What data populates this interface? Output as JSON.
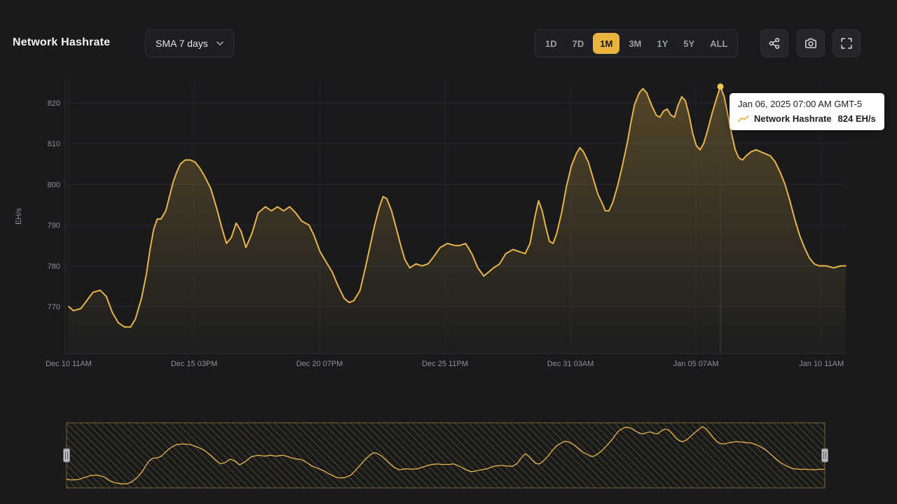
{
  "header": {
    "title": "Network Hashrate",
    "sma_dropdown": {
      "label": "SMA 7 days"
    },
    "ranges": [
      "1D",
      "7D",
      "1M",
      "3M",
      "1Y",
      "5Y",
      "ALL"
    ],
    "active_range": "1M",
    "toolbar": {
      "icons": [
        "share-icon",
        "camera-icon",
        "fullscreen-icon"
      ]
    }
  },
  "tooltip": {
    "datetime": "Jan 06, 2025 07:00 AM GMT-5",
    "series_label": "Network Hashrate",
    "value": "824 EH/s"
  },
  "colors": {
    "background": "#191a1c",
    "accent": "#E9B54A",
    "active_button_bg": "#E8B33E",
    "tooltip_bg": "#ffffff",
    "grid": "#26282c",
    "text_muted": "#8e9094"
  },
  "chart_data": {
    "type": "area",
    "title": "Network Hashrate",
    "ylabel": "EH/s",
    "xlabel": "",
    "ylim": [
      758,
      826
    ],
    "x_unit": "days since Dec 10 11AM",
    "xlim_days": [
      0,
      32
    ],
    "grid": true,
    "legend_position": "none",
    "y_ticks": [
      770,
      780,
      790,
      800,
      810,
      820
    ],
    "x_ticks": [
      {
        "label": "Dec 10 11AM",
        "day": 0
      },
      {
        "label": "Dec 15 03PM",
        "day": 5.167
      },
      {
        "label": "Dec 20 07PM",
        "day": 10.333
      },
      {
        "label": "Dec 25 11PM",
        "day": 15.5
      },
      {
        "label": "Dec 31 03AM",
        "day": 20.667
      },
      {
        "label": "Jan 05 07AM",
        "day": 25.833
      },
      {
        "label": "Jan 10 11AM",
        "day": 31.0
      }
    ],
    "series": [
      {
        "name": "Network Hashrate",
        "unit": "EH/s",
        "color": "#E9B54A",
        "points": [
          [
            0,
            770
          ],
          [
            0.2,
            769
          ],
          [
            0.5,
            769.5
          ],
          [
            0.75,
            771.5
          ],
          [
            1.0,
            773.5
          ],
          [
            1.3,
            774
          ],
          [
            1.55,
            772.5
          ],
          [
            1.8,
            768.5
          ],
          [
            2.05,
            766
          ],
          [
            2.3,
            765
          ],
          [
            2.55,
            765
          ],
          [
            2.75,
            767
          ],
          [
            3.0,
            772
          ],
          [
            3.2,
            778
          ],
          [
            3.35,
            784
          ],
          [
            3.5,
            789
          ],
          [
            3.65,
            791.5
          ],
          [
            3.8,
            791.5
          ],
          [
            4.0,
            793.5
          ],
          [
            4.15,
            797
          ],
          [
            4.3,
            800.5
          ],
          [
            4.45,
            803
          ],
          [
            4.6,
            805
          ],
          [
            4.8,
            806
          ],
          [
            5.0,
            806
          ],
          [
            5.2,
            805.5
          ],
          [
            5.4,
            804
          ],
          [
            5.6,
            802
          ],
          [
            5.85,
            799
          ],
          [
            6.1,
            794
          ],
          [
            6.3,
            789.5
          ],
          [
            6.5,
            785.5
          ],
          [
            6.7,
            787
          ],
          [
            6.9,
            790.5
          ],
          [
            7.1,
            788.5
          ],
          [
            7.3,
            784.5
          ],
          [
            7.55,
            788
          ],
          [
            7.8,
            793
          ],
          [
            8.1,
            794.5
          ],
          [
            8.35,
            793.5
          ],
          [
            8.6,
            794.5
          ],
          [
            8.85,
            793.5
          ],
          [
            9.1,
            794.5
          ],
          [
            9.35,
            793
          ],
          [
            9.6,
            791
          ],
          [
            9.9,
            790
          ],
          [
            10.1,
            787.5
          ],
          [
            10.35,
            783.5
          ],
          [
            10.6,
            781
          ],
          [
            10.85,
            778.5
          ],
          [
            11.1,
            775
          ],
          [
            11.35,
            772
          ],
          [
            11.55,
            771
          ],
          [
            11.75,
            771.5
          ],
          [
            12.0,
            774
          ],
          [
            12.2,
            779
          ],
          [
            12.4,
            784.5
          ],
          [
            12.6,
            790
          ],
          [
            12.8,
            794.5
          ],
          [
            12.95,
            797
          ],
          [
            13.1,
            796.5
          ],
          [
            13.3,
            793.5
          ],
          [
            13.5,
            789
          ],
          [
            13.7,
            784.5
          ],
          [
            13.85,
            781.5
          ],
          [
            14.05,
            779.5
          ],
          [
            14.3,
            780.5
          ],
          [
            14.55,
            780
          ],
          [
            14.8,
            780.5
          ],
          [
            15.0,
            782
          ],
          [
            15.3,
            784.5
          ],
          [
            15.6,
            785.5
          ],
          [
            15.9,
            785
          ],
          [
            16.1,
            785
          ],
          [
            16.35,
            785.5
          ],
          [
            16.6,
            783
          ],
          [
            16.85,
            779.5
          ],
          [
            17.1,
            777.5
          ],
          [
            17.3,
            778.5
          ],
          [
            17.5,
            779.5
          ],
          [
            17.75,
            780.5
          ],
          [
            18.0,
            783
          ],
          [
            18.3,
            784
          ],
          [
            18.55,
            783.5
          ],
          [
            18.8,
            783
          ],
          [
            19.0,
            785.5
          ],
          [
            19.2,
            792
          ],
          [
            19.35,
            796
          ],
          [
            19.5,
            793.5
          ],
          [
            19.65,
            789.5
          ],
          [
            19.8,
            786
          ],
          [
            19.95,
            785.5
          ],
          [
            20.1,
            788
          ],
          [
            20.3,
            793
          ],
          [
            20.5,
            799.5
          ],
          [
            20.7,
            804.5
          ],
          [
            20.9,
            807.5
          ],
          [
            21.05,
            809
          ],
          [
            21.2,
            808
          ],
          [
            21.4,
            805.5
          ],
          [
            21.6,
            801.5
          ],
          [
            21.8,
            797.5
          ],
          [
            22.0,
            795
          ],
          [
            22.1,
            793.5
          ],
          [
            22.25,
            793.5
          ],
          [
            22.4,
            795.5
          ],
          [
            22.6,
            799.5
          ],
          [
            22.8,
            804.5
          ],
          [
            23.0,
            810
          ],
          [
            23.15,
            815
          ],
          [
            23.3,
            819.5
          ],
          [
            23.5,
            822.5
          ],
          [
            23.65,
            823.5
          ],
          [
            23.8,
            822.5
          ],
          [
            24.0,
            819.5
          ],
          [
            24.2,
            817
          ],
          [
            24.35,
            816.5
          ],
          [
            24.5,
            818
          ],
          [
            24.65,
            818.5
          ],
          [
            24.8,
            817
          ],
          [
            24.95,
            816.5
          ],
          [
            25.1,
            819.5
          ],
          [
            25.25,
            821.5
          ],
          [
            25.4,
            820.5
          ],
          [
            25.55,
            817
          ],
          [
            25.7,
            812.5
          ],
          [
            25.85,
            809.5
          ],
          [
            26.0,
            808.5
          ],
          [
            26.15,
            810
          ],
          [
            26.3,
            813
          ],
          [
            26.5,
            817.5
          ],
          [
            26.7,
            821.5
          ],
          [
            26.84,
            824
          ],
          [
            27.0,
            821.5
          ],
          [
            27.15,
            817
          ],
          [
            27.3,
            812.5
          ],
          [
            27.45,
            808.5
          ],
          [
            27.6,
            806.5
          ],
          [
            27.75,
            806
          ],
          [
            27.9,
            807
          ],
          [
            28.1,
            808
          ],
          [
            28.3,
            808.5
          ],
          [
            28.5,
            808
          ],
          [
            28.7,
            807.5
          ],
          [
            28.9,
            807
          ],
          [
            29.1,
            805.5
          ],
          [
            29.3,
            803
          ],
          [
            29.5,
            800
          ],
          [
            29.7,
            796
          ],
          [
            29.9,
            791.5
          ],
          [
            30.1,
            787.5
          ],
          [
            30.3,
            784.5
          ],
          [
            30.5,
            782
          ],
          [
            30.7,
            780.5
          ],
          [
            30.9,
            780
          ],
          [
            31.2,
            780
          ],
          [
            31.5,
            779.5
          ],
          [
            31.8,
            780
          ],
          [
            32.0,
            780
          ]
        ]
      }
    ],
    "marker": {
      "day": 26.84,
      "value": 824,
      "label": "Jan 06, 2025 07:00 AM GMT-5"
    },
    "navigator": true
  }
}
